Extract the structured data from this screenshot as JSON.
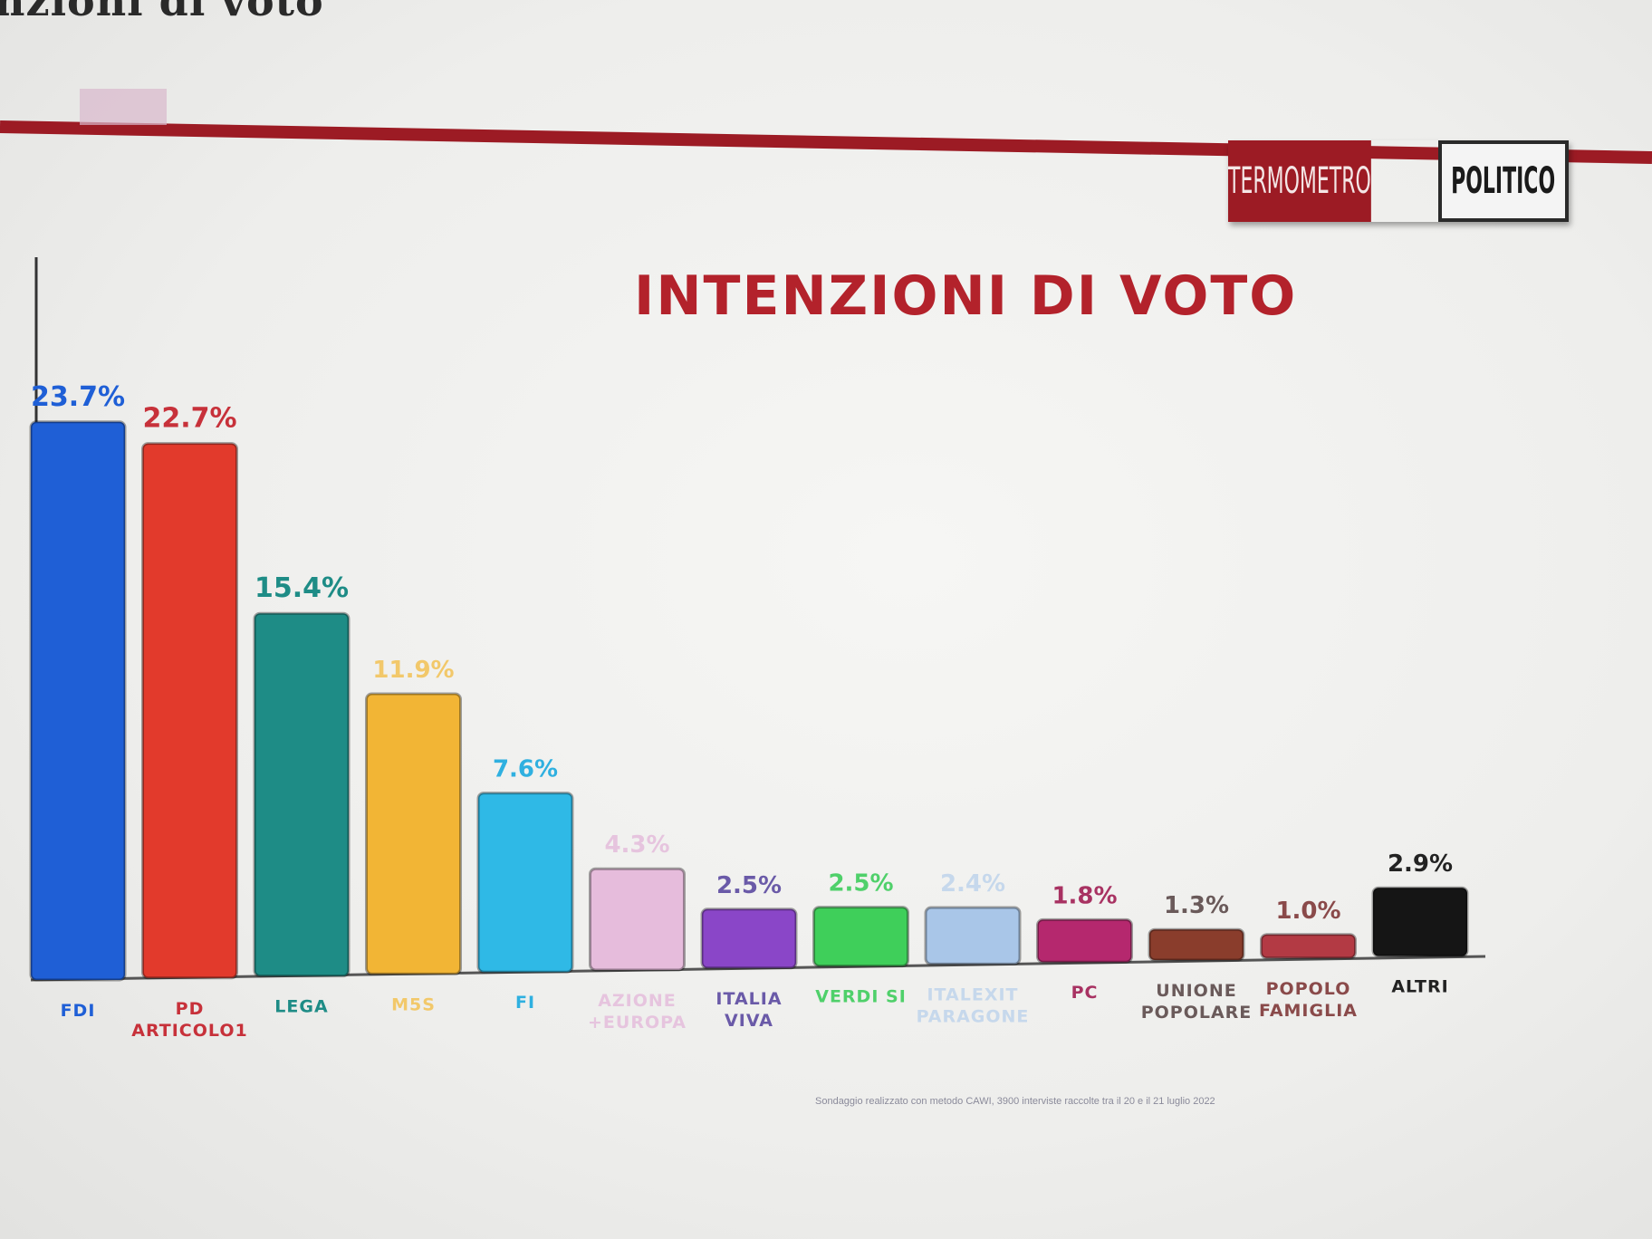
{
  "page": {
    "heading_fragment": "nzioni di voto",
    "logo": {
      "left": "TERMOMETRO",
      "right": "POLITICO",
      "colors": {
        "left_bg": "#9c1b24",
        "right_bg": "#f4f4f4"
      }
    },
    "footnote": "Sondaggio realizzato con metodo CAWI, 3900 interviste raccolte tra il 20 e il 21 luglio 2022"
  },
  "chart_data": {
    "type": "bar",
    "title": "INTENZIONI DI VOTO",
    "xlabel": "",
    "ylabel": "",
    "ylim": [
      0,
      25
    ],
    "grid": false,
    "legend": "none",
    "categories": [
      "FDI",
      "PD ARTICOLO1",
      "LEGA",
      "M5S",
      "FI",
      "AZIONE +EUROPA",
      "ITALIA VIVA",
      "VERDI SI",
      "ITALEXIT PARAGONE",
      "PC",
      "UNIONE POPOLARE",
      "POPOLO FAMIGLIA",
      "ALTRI"
    ],
    "values": [
      23.7,
      22.7,
      15.4,
      11.9,
      7.6,
      4.3,
      2.5,
      2.5,
      2.4,
      1.8,
      1.3,
      1.0,
      2.9
    ],
    "value_labels": [
      "23.7%",
      "22.7%",
      "15.4%",
      "11.9%",
      "7.6%",
      "4.3%",
      "2.5%",
      "2.5%",
      "2.4%",
      "1.8%",
      "1.3%",
      "1.0%",
      "2.9%"
    ],
    "category_lines": [
      [
        "FDI"
      ],
      [
        "PD",
        "ARTICOLO1"
      ],
      [
        "LEGA"
      ],
      [
        "M5S"
      ],
      [
        "FI"
      ],
      [
        "AZIONE",
        "+EUROPA"
      ],
      [
        "ITALIA",
        "VIVA"
      ],
      [
        "VERDI SI"
      ],
      [
        "ITALEXIT",
        "PARAGONE"
      ],
      [
        "PC"
      ],
      [
        "UNIONE",
        "POPOLARE"
      ],
      [
        "POPOLO",
        "FAMIGLIA"
      ],
      [
        "ALTRI"
      ]
    ],
    "colors": [
      "#1f5fd6",
      "#e23a2c",
      "#1e8c86",
      "#f2b535",
      "#2fb9e6",
      "#e6bcdc",
      "#8a46c8",
      "#3fcf5a",
      "#a9c6e8",
      "#b5286e",
      "#8a3d2c",
      "#b33a44",
      "#151515"
    ],
    "label_colors": [
      "#1f5fd6",
      "#c7313a",
      "#1e8c86",
      "#f2c86a",
      "#2fb0e0",
      "#e6c4de",
      "#6a5aa8",
      "#4fd06a",
      "#c6d8ec",
      "#a83262",
      "#6a5a5a",
      "#8a4a4a",
      "#222222"
    ]
  }
}
